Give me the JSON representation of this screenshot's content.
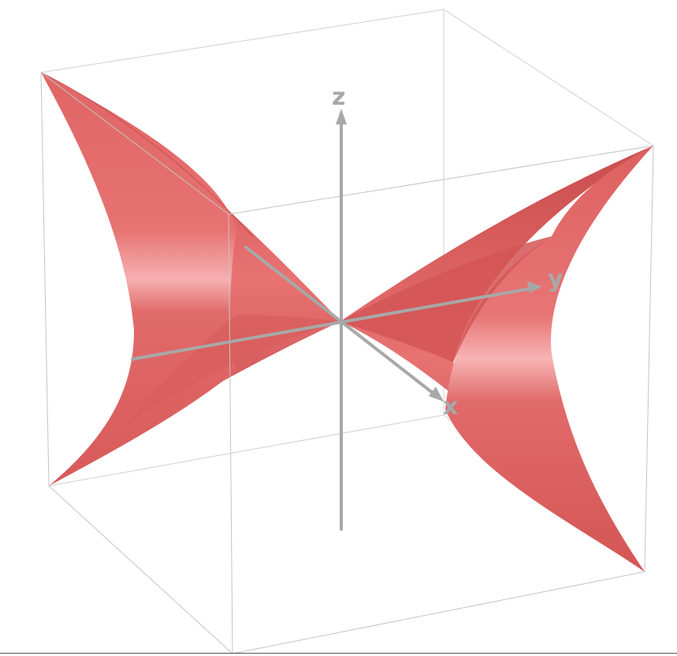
{
  "axes": {
    "x_label": "x",
    "y_label": "y",
    "z_label": "z"
  },
  "colors": {
    "surface_base": "#de6464",
    "surface_highlight": "#f5a9a9",
    "surface_dark": "#c44a4a",
    "axis": "#a8a8a8",
    "box_edge": "#c8c8c8"
  }
}
